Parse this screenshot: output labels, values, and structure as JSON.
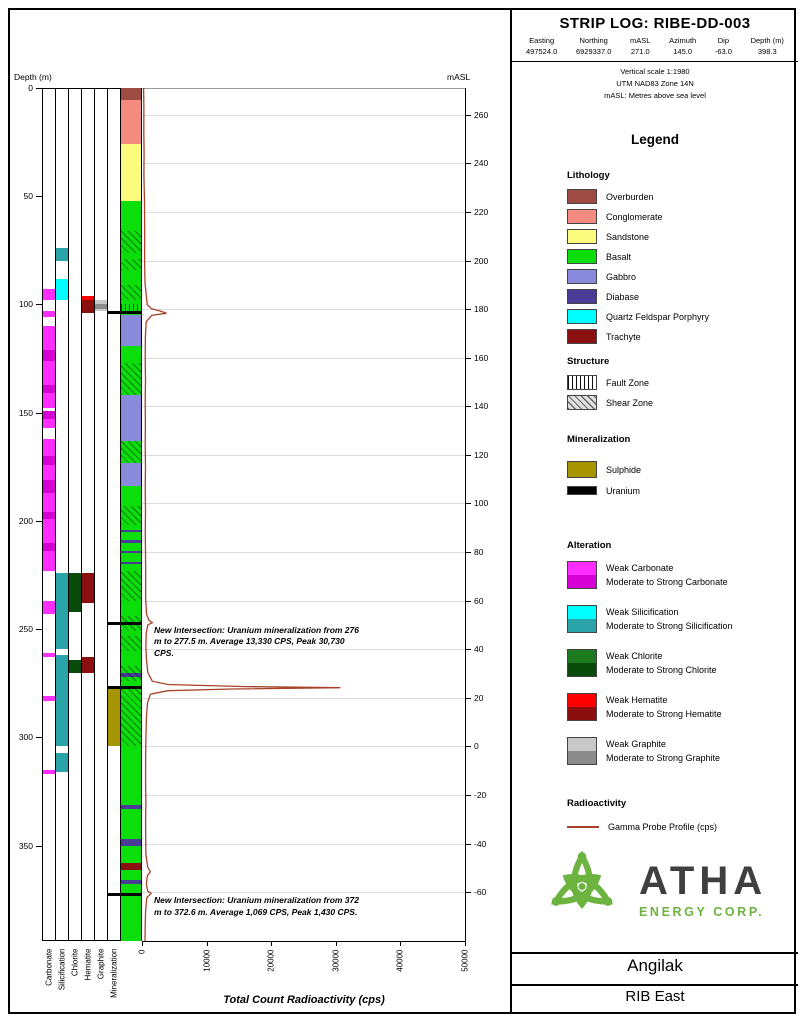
{
  "header": {
    "title": "STRIP LOG: RIBE-DD-003",
    "fields": [
      {
        "label": "Easting",
        "value": "497524.0"
      },
      {
        "label": "Northing",
        "value": "6929337.0"
      },
      {
        "label": "mASL",
        "value": "271.0"
      },
      {
        "label": "Azimuth",
        "value": "145.0"
      },
      {
        "label": "Dip",
        "value": "-63.0"
      },
      {
        "label": "Depth (m)",
        "value": "398.3"
      }
    ],
    "notes": [
      "Vertical scale 1:1980",
      "UTM NAD83 Zone 14N",
      "mASL: Metres above sea level"
    ]
  },
  "legend": {
    "title": "Legend",
    "sections": {
      "lithology": {
        "title": "Lithology",
        "items": [
          {
            "label": "Overburden",
            "color": "#9E4B44"
          },
          {
            "label": "Conglomerate",
            "color": "#F48A80"
          },
          {
            "label": "Sandstone",
            "color": "#FBFB7D"
          },
          {
            "label": "Basalt",
            "color": "#0BDE0B"
          },
          {
            "label": "Gabbro",
            "color": "#8A8ADC"
          },
          {
            "label": "Diabase",
            "color": "#4A3C96"
          },
          {
            "label": "Quartz Feldspar Porphyry",
            "color": "#00FFFF"
          },
          {
            "label": "Trachyte",
            "color": "#8B1111"
          }
        ]
      },
      "structure": {
        "title": "Structure",
        "items": [
          {
            "label": "Fault Zone",
            "pattern": "vertical"
          },
          {
            "label": "Shear Zone",
            "pattern": "diagonal"
          }
        ]
      },
      "mineralization": {
        "title": "Mineralization",
        "items": [
          {
            "label": "Sulphide",
            "color": "#A69500"
          },
          {
            "label": "Uranium",
            "color": "#000000"
          }
        ]
      },
      "alteration": {
        "title": "Alteration",
        "items": [
          {
            "weak_label": "Weak Carbonate",
            "strong_label": "Moderate to Strong Carbonate",
            "weak_color": "#FF2EFF",
            "strong_color": "#D400D4"
          },
          {
            "weak_label": "Weak Silicification",
            "strong_label": "Moderate to Strong Silicification",
            "weak_color": "#00FFFF",
            "strong_color": "#2AA4A8"
          },
          {
            "weak_label": "Weak Chlorite",
            "strong_label": "Moderate to Strong Chlorite",
            "weak_color": "#1E7A1E",
            "strong_color": "#0A4A0A"
          },
          {
            "weak_label": "Weak Hematite",
            "strong_label": "Moderate to Strong Hematite",
            "weak_color": "#FF0000",
            "strong_color": "#8B0F0F"
          },
          {
            "weak_label": "Weak Graphite",
            "strong_label": "Moderate to Strong Graphite",
            "weak_color": "#C8C8C8",
            "strong_color": "#8C8C8C"
          }
        ]
      },
      "radioactivity": {
        "title": "Radioactivity",
        "items": [
          {
            "label": "Gamma Probe Profile (cps)",
            "color": "#A8432A"
          }
        ]
      }
    }
  },
  "logo": {
    "name": "ATHA",
    "subtitle": "ENERGY CORP.",
    "color": "#6CB33F"
  },
  "footer": {
    "project": "Angilak",
    "area": "RIB East"
  },
  "chart_data": {
    "type": "strip-log",
    "depth_axis": {
      "label": "Depth (m)",
      "ticks": [
        0,
        50,
        100,
        150,
        200,
        250,
        300,
        350
      ],
      "range": [
        0,
        394
      ]
    },
    "masl_axis": {
      "label": "mASL",
      "ticks": [
        260,
        240,
        220,
        200,
        180,
        160,
        140,
        120,
        100,
        80,
        60,
        40,
        20,
        0,
        -20,
        -40,
        -60
      ],
      "surface_masl": 271.0,
      "dip_deg": -63.0
    },
    "radioactivity_axis": {
      "label": "Total Count Radioactivity (cps)",
      "ticks": [
        0,
        10000,
        20000,
        30000,
        40000,
        50000
      ],
      "range": [
        0,
        50000
      ]
    },
    "tracks": [
      "Carbonate",
      "Silicification",
      "Chlorite",
      "Hematite",
      "Graphite",
      "Mineralization"
    ],
    "lithology_colors": {
      "Overburden": "#9E4B44",
      "Conglomerate": "#F48A80",
      "Sandstone": "#FBFB7D",
      "Basalt": "#0BDE0B",
      "Gabbro": "#8A8ADC",
      "Diabase": "#4A3C96",
      "Quartz Feldspar Porphyry": "#00FFFF",
      "Trachyte": "#8B1111"
    },
    "lithology_intervals": [
      {
        "from": 0,
        "to": 5.5,
        "unit": "Overburden"
      },
      {
        "from": 5.5,
        "to": 26,
        "unit": "Conglomerate"
      },
      {
        "from": 26,
        "to": 52,
        "unit": "Sandstone"
      },
      {
        "from": 52,
        "to": 105,
        "unit": "Basalt"
      },
      {
        "from": 105,
        "to": 119,
        "unit": "Gabbro"
      },
      {
        "from": 119,
        "to": 142,
        "unit": "Basalt"
      },
      {
        "from": 142,
        "to": 163,
        "unit": "Gabbro"
      },
      {
        "from": 163,
        "to": 173,
        "unit": "Basalt"
      },
      {
        "from": 173,
        "to": 184,
        "unit": "Gabbro"
      },
      {
        "from": 184,
        "to": 204,
        "unit": "Basalt"
      },
      {
        "from": 204,
        "to": 205,
        "unit": "Diabase"
      },
      {
        "from": 205,
        "to": 209,
        "unit": "Basalt"
      },
      {
        "from": 209,
        "to": 210,
        "unit": "Diabase"
      },
      {
        "from": 210,
        "to": 214,
        "unit": "Basalt"
      },
      {
        "from": 214,
        "to": 215,
        "unit": "Diabase"
      },
      {
        "from": 215,
        "to": 219,
        "unit": "Basalt"
      },
      {
        "from": 219,
        "to": 220,
        "unit": "Diabase"
      },
      {
        "from": 220,
        "to": 270,
        "unit": "Basalt"
      },
      {
        "from": 270,
        "to": 272,
        "unit": "Diabase"
      },
      {
        "from": 272,
        "to": 331,
        "unit": "Basalt"
      },
      {
        "from": 331,
        "to": 333,
        "unit": "Diabase"
      },
      {
        "from": 333,
        "to": 347,
        "unit": "Basalt"
      },
      {
        "from": 347,
        "to": 350,
        "unit": "Diabase"
      },
      {
        "from": 350,
        "to": 358,
        "unit": "Basalt"
      },
      {
        "from": 358,
        "to": 361,
        "unit": "Trachyte"
      },
      {
        "from": 361,
        "to": 366,
        "unit": "Basalt"
      },
      {
        "from": 366,
        "to": 367.5,
        "unit": "Diabase"
      },
      {
        "from": 367.5,
        "to": 394,
        "unit": "Basalt"
      }
    ],
    "structure_intervals": [
      {
        "from": 66,
        "to": 76,
        "type": "Shear Zone"
      },
      {
        "from": 79,
        "to": 84,
        "type": "Shear Zone"
      },
      {
        "from": 91,
        "to": 98,
        "type": "Shear Zone"
      },
      {
        "from": 100,
        "to": 104,
        "type": "Fault Zone"
      },
      {
        "from": 127,
        "to": 142,
        "type": "Shear Zone"
      },
      {
        "from": 163,
        "to": 173,
        "type": "Shear Zone"
      },
      {
        "from": 193,
        "to": 202,
        "type": "Shear Zone"
      },
      {
        "from": 223,
        "to": 237,
        "type": "Shear Zone"
      },
      {
        "from": 244,
        "to": 251,
        "type": "Shear Zone"
      },
      {
        "from": 253,
        "to": 260,
        "type": "Shear Zone"
      },
      {
        "from": 267,
        "to": 274,
        "type": "Shear Zone"
      },
      {
        "from": 276,
        "to": 304,
        "type": "Shear Zone"
      }
    ],
    "alteration_colors": {
      "carbonate": {
        "weak": "#FF2EFF",
        "moderate_strong": "#D400D4"
      },
      "silicification": {
        "weak": "#00FFFF",
        "moderate_strong": "#2AA4A8"
      },
      "chlorite": {
        "weak": "#1E7A1E",
        "moderate_strong": "#0A4A0A"
      },
      "hematite": {
        "weak": "#FF0000",
        "moderate_strong": "#8B0F0F"
      },
      "graphite": {
        "weak": "#C8C8C8",
        "moderate_strong": "#8C8C8C"
      }
    },
    "alteration": {
      "carbonate": [
        {
          "from": 93,
          "to": 98,
          "intensity": "weak"
        },
        {
          "from": 103,
          "to": 106,
          "intensity": "weak"
        },
        {
          "from": 110,
          "to": 121,
          "intensity": "weak"
        },
        {
          "from": 121,
          "to": 126,
          "intensity": "moderate_strong"
        },
        {
          "from": 126,
          "to": 137,
          "intensity": "weak"
        },
        {
          "from": 137,
          "to": 141,
          "intensity": "moderate_strong"
        },
        {
          "from": 141,
          "to": 148,
          "intensity": "weak"
        },
        {
          "from": 149,
          "to": 153,
          "intensity": "moderate_strong"
        },
        {
          "from": 153,
          "to": 157,
          "intensity": "weak"
        },
        {
          "from": 162,
          "to": 170,
          "intensity": "weak"
        },
        {
          "from": 170,
          "to": 174,
          "intensity": "moderate_strong"
        },
        {
          "from": 174,
          "to": 181,
          "intensity": "weak"
        },
        {
          "from": 181,
          "to": 187,
          "intensity": "moderate_strong"
        },
        {
          "from": 187,
          "to": 196,
          "intensity": "weak"
        },
        {
          "from": 196,
          "to": 199,
          "intensity": "moderate_strong"
        },
        {
          "from": 199,
          "to": 210,
          "intensity": "weak"
        },
        {
          "from": 210,
          "to": 214,
          "intensity": "moderate_strong"
        },
        {
          "from": 214,
          "to": 223,
          "intensity": "weak"
        },
        {
          "from": 237,
          "to": 243,
          "intensity": "weak"
        },
        {
          "from": 261,
          "to": 263,
          "intensity": "weak"
        },
        {
          "from": 281,
          "to": 283,
          "intensity": "weak"
        },
        {
          "from": 315,
          "to": 317,
          "intensity": "weak"
        }
      ],
      "silicification": [
        {
          "from": 74,
          "to": 80,
          "intensity": "moderate_strong"
        },
        {
          "from": 88,
          "to": 98,
          "intensity": "weak"
        },
        {
          "from": 224,
          "to": 259,
          "intensity": "moderate_strong"
        },
        {
          "from": 262,
          "to": 304,
          "intensity": "moderate_strong"
        },
        {
          "from": 307,
          "to": 316,
          "intensity": "moderate_strong"
        }
      ],
      "chlorite": [
        {
          "from": 224,
          "to": 242,
          "intensity": "moderate_strong"
        },
        {
          "from": 264,
          "to": 270,
          "intensity": "moderate_strong"
        }
      ],
      "hematite": [
        {
          "from": 96,
          "to": 98,
          "intensity": "weak"
        },
        {
          "from": 98,
          "to": 104,
          "intensity": "moderate_strong"
        },
        {
          "from": 224,
          "to": 238,
          "intensity": "moderate_strong"
        },
        {
          "from": 263,
          "to": 270,
          "intensity": "moderate_strong"
        }
      ],
      "graphite": [
        {
          "from": 98,
          "to": 103,
          "intensity": "weak"
        },
        {
          "from": 100,
          "to": 102,
          "intensity": "moderate_strong"
        }
      ]
    },
    "mineralization_colors": {
      "Sulphide": "#A69500",
      "Uranium": "#000000"
    },
    "mineralization_intervals": [
      {
        "from": 103,
        "to": 104.5,
        "mineral": "Uranium"
      },
      {
        "from": 246.5,
        "to": 248,
        "mineral": "Uranium"
      },
      {
        "from": 276,
        "to": 304,
        "mineral": "Sulphide"
      },
      {
        "from": 276,
        "to": 277.5,
        "mineral": "Uranium"
      },
      {
        "from": 372,
        "to": 372.6,
        "mineral": "Uranium"
      }
    ],
    "gamma_color": "#A8432A",
    "gamma_profile": [
      [
        0,
        250
      ],
      [
        10,
        300
      ],
      [
        20,
        280
      ],
      [
        30,
        320
      ],
      [
        40,
        300
      ],
      [
        52,
        380
      ],
      [
        60,
        400
      ],
      [
        70,
        420
      ],
      [
        80,
        400
      ],
      [
        90,
        460
      ],
      [
        100,
        800
      ],
      [
        102,
        1500
      ],
      [
        103,
        2800
      ],
      [
        104,
        3800
      ],
      [
        105,
        1500
      ],
      [
        108,
        650
      ],
      [
        115,
        520
      ],
      [
        125,
        500
      ],
      [
        135,
        540
      ],
      [
        145,
        500
      ],
      [
        155,
        530
      ],
      [
        165,
        500
      ],
      [
        175,
        540
      ],
      [
        185,
        500
      ],
      [
        195,
        540
      ],
      [
        205,
        510
      ],
      [
        215,
        540
      ],
      [
        225,
        580
      ],
      [
        235,
        550
      ],
      [
        243,
        700
      ],
      [
        246,
        1100
      ],
      [
        247,
        1600
      ],
      [
        248,
        900
      ],
      [
        252,
        650
      ],
      [
        258,
        600
      ],
      [
        264,
        700
      ],
      [
        270,
        900
      ],
      [
        274,
        1600
      ],
      [
        275.5,
        4000
      ],
      [
        276.5,
        16000
      ],
      [
        277,
        30730
      ],
      [
        277.6,
        14000
      ],
      [
        278.4,
        4000
      ],
      [
        280,
        1300
      ],
      [
        284,
        850
      ],
      [
        290,
        700
      ],
      [
        298,
        620
      ],
      [
        306,
        580
      ],
      [
        314,
        560
      ],
      [
        322,
        560
      ],
      [
        330,
        600
      ],
      [
        338,
        560
      ],
      [
        346,
        580
      ],
      [
        354,
        600
      ],
      [
        360,
        900
      ],
      [
        362,
        1300
      ],
      [
        364,
        800
      ],
      [
        368,
        680
      ],
      [
        371,
        900
      ],
      [
        372,
        1430
      ],
      [
        372.6,
        1200
      ],
      [
        374,
        750
      ],
      [
        380,
        560
      ],
      [
        387,
        500
      ],
      [
        394,
        460
      ]
    ],
    "annotations": [
      {
        "depth": 248,
        "text": "New Intersection: Uranium mineralization from 276 m to 277.5 m. Average 13,330 CPS, Peak 30,730 CPS."
      },
      {
        "depth": 372.8,
        "text": "New Intersection: Uranium mineralization from 372 m to 372.6 m. Average 1,069 CPS, Peak 1,430 CPS."
      }
    ]
  }
}
